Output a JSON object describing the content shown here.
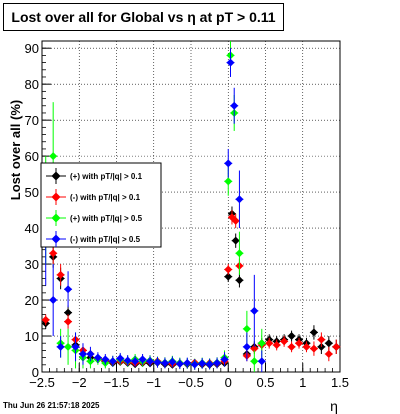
{
  "title": "Lost over all for Global vs    η at pT > 0.11",
  "timestamp": "Thu Jun 26 21:57:18 2025",
  "chart_data": {
    "type": "scatter",
    "title": "Lost over all for Global vs    η at pT > 0.11",
    "xlabel": "η",
    "ylabel": "Lost over all (%)",
    "xlim": [
      -2.5,
      1.5
    ],
    "ylim": [
      0,
      92
    ],
    "xticks": [
      -2.5,
      -2,
      -1.5,
      -1,
      -0.5,
      0,
      0.5,
      1,
      1.5
    ],
    "xtick_labels": [
      "−2.5",
      "−2",
      "−1.5",
      "−1",
      "−0.5",
      "0",
      "0.5",
      "1",
      "1.5"
    ],
    "yticks": [
      0,
      10,
      20,
      30,
      40,
      50,
      60,
      70,
      80,
      90
    ],
    "ytick_labels": [
      "0",
      "10",
      "20",
      "30",
      "40",
      "50",
      "60",
      "70",
      "80",
      "90"
    ],
    "grid": true,
    "legend_position": "middle-left",
    "series": [
      {
        "name": "(+) with pT/|q| > 0.1",
        "color": "#000000",
        "points": [
          [
            -2.45,
            13.5,
            1.5
          ],
          [
            -2.35,
            32,
            3
          ],
          [
            -2.25,
            26,
            3
          ],
          [
            -2.15,
            16.5,
            2
          ],
          [
            -2.05,
            7.5,
            1.5
          ],
          [
            -1.95,
            5,
            1
          ],
          [
            -1.85,
            4,
            1
          ],
          [
            -1.75,
            3.5,
            1
          ],
          [
            -1.65,
            3,
            0.8
          ],
          [
            -1.55,
            2.5,
            0.8
          ],
          [
            -1.45,
            2.8,
            0.8
          ],
          [
            -1.35,
            2.5,
            0.8
          ],
          [
            -1.25,
            2.2,
            0.7
          ],
          [
            -1.15,
            2.5,
            0.7
          ],
          [
            -1.05,
            2.4,
            0.7
          ],
          [
            -0.95,
            2.6,
            0.7
          ],
          [
            -0.85,
            2.2,
            0.7
          ],
          [
            -0.75,
            2,
            0.7
          ],
          [
            -0.65,
            2.3,
            0.7
          ],
          [
            -0.55,
            2.2,
            0.7
          ],
          [
            -0.45,
            2.4,
            0.7
          ],
          [
            -0.35,
            2.1,
            0.7
          ],
          [
            -0.25,
            2,
            0.7
          ],
          [
            -0.15,
            2.2,
            0.7
          ],
          [
            -0.05,
            2.5,
            0.7
          ],
          [
            0.0,
            26.5,
            1.5
          ],
          [
            0.05,
            44,
            2
          ],
          [
            0.1,
            36.5,
            2
          ],
          [
            0.15,
            25.5,
            2
          ],
          [
            0.25,
            5,
            1.5
          ],
          [
            0.35,
            7,
            1.5
          ],
          [
            0.45,
            8,
            1.5
          ],
          [
            0.55,
            9,
            1.5
          ],
          [
            0.65,
            8.5,
            1.5
          ],
          [
            0.75,
            9,
            1.5
          ],
          [
            0.85,
            10,
            1.5
          ],
          [
            0.95,
            9,
            1.5
          ],
          [
            1.05,
            8,
            1.5
          ],
          [
            1.15,
            11,
            2
          ],
          [
            1.25,
            7,
            2
          ],
          [
            1.35,
            8,
            2
          ],
          [
            1.45,
            7,
            2
          ]
        ]
      },
      {
        "name": "(-) with pT/|q| > 0.1",
        "color": "#ff0000",
        "points": [
          [
            -2.45,
            14.5,
            1.5
          ],
          [
            -2.35,
            33,
            3
          ],
          [
            -2.25,
            27,
            3
          ],
          [
            -2.15,
            14,
            2
          ],
          [
            -2.05,
            9,
            1.5
          ],
          [
            -1.95,
            6,
            1
          ],
          [
            -1.85,
            5,
            1
          ],
          [
            -1.75,
            3.8,
            1
          ],
          [
            -1.65,
            3.2,
            0.8
          ],
          [
            -1.55,
            2.8,
            0.8
          ],
          [
            -1.45,
            3,
            0.8
          ],
          [
            -1.35,
            2.7,
            0.8
          ],
          [
            -1.25,
            2.5,
            0.7
          ],
          [
            -1.15,
            2.7,
            0.7
          ],
          [
            -1.05,
            2.8,
            0.7
          ],
          [
            -0.95,
            3,
            0.7
          ],
          [
            -0.85,
            2.5,
            0.7
          ],
          [
            -0.75,
            2.3,
            0.7
          ],
          [
            -0.65,
            2.5,
            0.7
          ],
          [
            -0.55,
            2.4,
            0.7
          ],
          [
            -0.45,
            2.6,
            0.7
          ],
          [
            -0.35,
            2.3,
            0.7
          ],
          [
            -0.25,
            2.5,
            0.7
          ],
          [
            -0.15,
            2.4,
            0.7
          ],
          [
            -0.05,
            3,
            0.7
          ],
          [
            0.0,
            28.5,
            1.5
          ],
          [
            0.05,
            43,
            2
          ],
          [
            0.1,
            42,
            2
          ],
          [
            0.15,
            29.5,
            2
          ],
          [
            0.25,
            4.5,
            1.5
          ],
          [
            0.35,
            6.5,
            1.5
          ],
          [
            0.45,
            7.5,
            1.5
          ],
          [
            0.55,
            8,
            1.5
          ],
          [
            0.65,
            7.5,
            1.5
          ],
          [
            0.75,
            8.5,
            1.5
          ],
          [
            0.85,
            7,
            1.5
          ],
          [
            0.95,
            8,
            1.5
          ],
          [
            1.05,
            7,
            1.5
          ],
          [
            1.15,
            6.5,
            2
          ],
          [
            1.25,
            9,
            2
          ],
          [
            1.35,
            5,
            2
          ],
          [
            1.45,
            7,
            2
          ]
        ]
      },
      {
        "name": "(+) with pT/|q| > 0.5",
        "color": "#00ff00",
        "points": [
          [
            -2.45,
            45,
            15
          ],
          [
            -2.35,
            60,
            15
          ],
          [
            -2.25,
            8,
            4
          ],
          [
            -2.15,
            7,
            5
          ],
          [
            -2.05,
            6,
            5
          ],
          [
            -1.95,
            4,
            3
          ],
          [
            -1.85,
            3,
            2
          ],
          [
            -1.75,
            3.5,
            1.5
          ],
          [
            -1.65,
            2.5,
            1.5
          ],
          [
            -1.55,
            3,
            1.5
          ],
          [
            -1.45,
            3.5,
            1.5
          ],
          [
            -1.35,
            3,
            1.5
          ],
          [
            -1.25,
            3.5,
            1.5
          ],
          [
            -1.15,
            3,
            1.5
          ],
          [
            -1.05,
            3.2,
            1.5
          ],
          [
            -0.95,
            2.8,
            1.5
          ],
          [
            -0.85,
            2.6,
            1.5
          ],
          [
            -0.75,
            3,
            1.5
          ],
          [
            -0.65,
            2.5,
            1.5
          ],
          [
            -0.55,
            2.4,
            1.5
          ],
          [
            -0.45,
            2.2,
            1.5
          ],
          [
            -0.35,
            2.5,
            1.5
          ],
          [
            -0.25,
            2.3,
            1.5
          ],
          [
            -0.15,
            2.6,
            1.5
          ],
          [
            -0.05,
            4,
            2
          ],
          [
            0.0,
            53,
            4
          ],
          [
            0.03,
            88,
            4
          ],
          [
            0.08,
            72,
            5
          ],
          [
            0.15,
            33,
            6
          ],
          [
            0.25,
            12,
            5
          ],
          [
            0.35,
            3,
            3
          ],
          [
            0.45,
            8,
            4
          ]
        ]
      },
      {
        "name": "(-) with pT/|q| > 0.5",
        "color": "#0000ff",
        "points": [
          [
            -2.45,
            39,
            15
          ],
          [
            -2.35,
            20,
            10
          ],
          [
            -2.25,
            7,
            3
          ],
          [
            -2.15,
            23,
            5
          ],
          [
            -2.05,
            7,
            4
          ],
          [
            -1.95,
            5,
            3
          ],
          [
            -1.85,
            5,
            2
          ],
          [
            -1.75,
            4,
            1.5
          ],
          [
            -1.65,
            3.5,
            1.5
          ],
          [
            -1.55,
            3,
            1.5
          ],
          [
            -1.45,
            3.8,
            1.5
          ],
          [
            -1.35,
            3.2,
            1.5
          ],
          [
            -1.25,
            3,
            1.5
          ],
          [
            -1.15,
            3.5,
            1.5
          ],
          [
            -1.05,
            3,
            1.5
          ],
          [
            -0.95,
            2.7,
            1.5
          ],
          [
            -0.85,
            2.5,
            1.5
          ],
          [
            -0.75,
            2.8,
            1.5
          ],
          [
            -0.65,
            2.3,
            1.5
          ],
          [
            -0.55,
            2.5,
            1.5
          ],
          [
            -0.45,
            2.1,
            1.5
          ],
          [
            -0.35,
            2.4,
            1.5
          ],
          [
            -0.25,
            2.2,
            1.5
          ],
          [
            -0.15,
            2.5,
            1.5
          ],
          [
            -0.05,
            3.5,
            2
          ],
          [
            0.0,
            58,
            4
          ],
          [
            0.03,
            86,
            4
          ],
          [
            0.08,
            74,
            5
          ],
          [
            0.15,
            48,
            8
          ],
          [
            0.25,
            7,
            4
          ],
          [
            0.35,
            17,
            10
          ],
          [
            0.45,
            3,
            3
          ]
        ]
      }
    ]
  }
}
